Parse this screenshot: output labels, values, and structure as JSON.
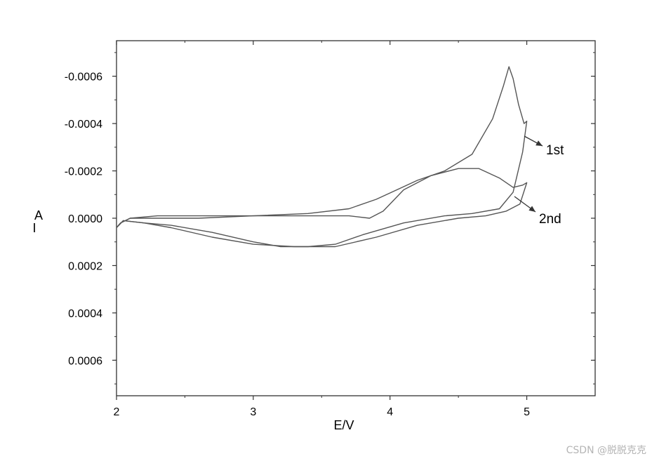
{
  "chart_data": {
    "type": "line",
    "xlabel": "E/V",
    "ylabel": "I",
    "ylabel_unit": "A",
    "xlim": [
      2,
      5.5
    ],
    "ylim": [
      0.00075,
      -0.00075
    ],
    "y_inverted": true,
    "x_ticks": [
      2,
      3,
      4,
      5
    ],
    "x_tick_labels": [
      "2",
      "3",
      "4",
      "5"
    ],
    "y_ticks": [
      -0.0006,
      -0.0004,
      -0.0002,
      0.0,
      0.0002,
      0.0004,
      0.0006
    ],
    "y_tick_labels": [
      "-0.0006",
      "-0.0004",
      "-0.0002",
      "0.0000",
      "0.0002",
      "0.0004",
      "0.0006"
    ],
    "grid": false,
    "series": [
      {
        "name": "1st",
        "x": [
          2.0,
          2.03,
          2.1,
          2.3,
          2.6,
          3.0,
          3.4,
          3.7,
          3.9,
          4.05,
          4.2,
          4.4,
          4.6,
          4.75,
          4.83,
          4.87,
          4.9,
          4.94,
          4.98,
          5.0,
          4.97,
          4.9,
          4.8,
          4.6,
          4.4,
          4.1,
          3.8,
          3.6,
          3.4,
          3.2,
          3.0,
          2.7,
          2.4,
          2.2,
          2.05,
          2.0
        ],
        "y": [
          4e-05,
          2e-05,
          0.0,
          -1e-05,
          -1e-05,
          -1e-05,
          -2e-05,
          -4e-05,
          -8e-05,
          -0.00012,
          -0.00016,
          -0.0002,
          -0.00027,
          -0.00042,
          -0.00056,
          -0.00064,
          -0.00059,
          -0.00048,
          -0.0004,
          -0.00041,
          -0.00028,
          -0.00011,
          -4e-05,
          -2e-05,
          -1e-05,
          2e-05,
          7e-05,
          0.00011,
          0.00012,
          0.00012,
          0.0001,
          6e-05,
          3e-05,
          2e-05,
          1e-05,
          4e-05
        ]
      },
      {
        "name": "2nd",
        "x": [
          2.0,
          2.03,
          2.1,
          2.3,
          2.6,
          3.0,
          3.4,
          3.7,
          3.85,
          3.95,
          4.1,
          4.3,
          4.5,
          4.65,
          4.8,
          4.9,
          4.97,
          5.0,
          4.95,
          4.85,
          4.7,
          4.5,
          4.2,
          3.9,
          3.6,
          3.3,
          3.0,
          2.7,
          2.4,
          2.2,
          2.05,
          2.0
        ],
        "y": [
          4e-05,
          2e-05,
          0.0,
          0.0,
          0.0,
          -1e-05,
          -1e-05,
          -1e-05,
          0.0,
          -3e-05,
          -0.00012,
          -0.00018,
          -0.00021,
          -0.00021,
          -0.00017,
          -0.00013,
          -0.00014,
          -0.00015,
          -6e-05,
          -3e-05,
          -1e-05,
          0.0,
          3e-05,
          8e-05,
          0.00012,
          0.00012,
          0.00011,
          8e-05,
          4e-05,
          2e-05,
          1e-05,
          4e-05
        ]
      }
    ],
    "annotations": [
      {
        "text": "1st",
        "series": "1st"
      },
      {
        "text": "2nd",
        "series": "2nd"
      }
    ]
  },
  "colors": {
    "line": "#555555",
    "axis": "#333333",
    "text": "#000000"
  },
  "watermark": "CSDN @脱脱克克"
}
